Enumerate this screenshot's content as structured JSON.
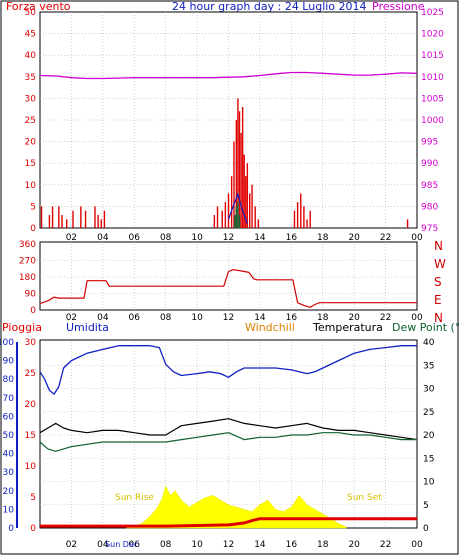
{
  "header": {
    "left_label": "Forza vento",
    "title": "24 hour graph day : 24 Luglio 2014",
    "right_label": "Pressione"
  },
  "colors": {
    "frame": "#000000",
    "wind": "#e00000",
    "pressure": "#d000d0",
    "direction": "#d00000",
    "humidity": "#1020c0",
    "temperature": "#000000",
    "dewpoint": "#106030",
    "windchill": "#e08000",
    "rain": "#e00000",
    "solar": "#ffff00",
    "solar_label": "#d8c000",
    "grid": "#b0b0b0"
  },
  "chart_data": [
    {
      "type": "line",
      "id": "wind-pressure",
      "x_ticks": [
        "02",
        "04",
        "06",
        "08",
        "10",
        "12",
        "14",
        "16",
        "18",
        "20",
        "22",
        "00"
      ],
      "y_left": {
        "label": "Forza vento",
        "ylim": [
          0,
          50
        ],
        "ticks": [
          0,
          5,
          10,
          15,
          20,
          25,
          30,
          35,
          40,
          45,
          50
        ]
      },
      "y_right": {
        "label": "Pressione",
        "ylim": [
          975,
          1025
        ],
        "ticks": [
          975,
          980,
          985,
          990,
          995,
          1000,
          1005,
          1010,
          1015,
          1020,
          1025
        ]
      },
      "series": [
        {
          "name": "Pressione",
          "color": "pressure",
          "x": [
            0,
            1,
            2,
            3,
            4,
            5,
            6,
            7,
            8,
            9,
            10,
            11,
            12,
            13,
            14,
            15,
            16,
            17,
            18,
            19,
            20,
            21,
            22,
            23,
            24
          ],
          "y": [
            1010.3,
            1010.2,
            1009.8,
            1009.6,
            1009.6,
            1009.7,
            1009.8,
            1009.8,
            1009.8,
            1009.8,
            1009.8,
            1009.8,
            1009.9,
            1010.0,
            1010.3,
            1010.7,
            1011.0,
            1011.0,
            1010.8,
            1010.6,
            1010.4,
            1010.4,
            1010.6,
            1010.9,
            1010.8
          ]
        },
        {
          "name": "Forza vento",
          "color": "wind",
          "x": [
            0.1,
            0.6,
            0.8,
            1.2,
            1.4,
            1.7,
            2.1,
            2.6,
            2.9,
            3.5,
            3.7,
            3.9,
            4.1,
            11.1,
            11.3,
            11.6,
            11.8,
            12.0,
            12.2,
            12.35,
            12.5,
            12.6,
            12.7,
            12.8,
            12.9,
            13.0,
            13.1,
            13.2,
            13.35,
            13.5,
            13.7,
            13.9,
            16.2,
            16.4,
            16.6,
            16.8,
            17.0,
            17.2,
            23.4
          ],
          "y": [
            5,
            3,
            5,
            5,
            3,
            2,
            4,
            5,
            4,
            5,
            3,
            2,
            4,
            3,
            5,
            4,
            6,
            8,
            12,
            20,
            25,
            30,
            27,
            22,
            28,
            17,
            12,
            15,
            8,
            10,
            5,
            2,
            4,
            6,
            8,
            5,
            2,
            4,
            2
          ]
        },
        {
          "name": "",
          "color": "humidity",
          "x": [
            12.0,
            12.2,
            12.4,
            12.5,
            12.6,
            12.8,
            13.0,
            13.2
          ],
          "y": [
            2,
            4,
            6,
            7,
            8,
            5,
            3,
            1
          ]
        },
        {
          "name": "",
          "color": "dewpoint",
          "x": [
            12.4,
            12.5,
            12.6,
            12.7
          ],
          "y": [
            3,
            5,
            6,
            3
          ]
        }
      ]
    },
    {
      "type": "line",
      "id": "wind-direction",
      "x_ticks": [
        "02",
        "04",
        "06",
        "08",
        "10",
        "12",
        "14",
        "16",
        "18",
        "20",
        "22",
        "00"
      ],
      "y_left": {
        "ylim": [
          0,
          360
        ],
        "ticks": [
          0,
          90,
          180,
          270,
          360
        ]
      },
      "y_right_labels": [
        "N",
        "W",
        "S",
        "E",
        "N"
      ],
      "series": [
        {
          "name": "",
          "color": "direction",
          "x": [
            0.0,
            0.5,
            0.9,
            1.2,
            2.8,
            3.0,
            4.2,
            4.4,
            11.4,
            11.7,
            12.0,
            12.3,
            12.7,
            13.0,
            13.3,
            13.6,
            13.8,
            14.1,
            16.1,
            16.4,
            16.8,
            17.2,
            17.5,
            17.8,
            24.0
          ],
          "y": [
            35,
            50,
            70,
            65,
            65,
            160,
            160,
            130,
            130,
            130,
            210,
            220,
            215,
            210,
            205,
            170,
            165,
            165,
            165,
            40,
            25,
            15,
            30,
            40,
            40
          ]
        }
      ]
    },
    {
      "type": "line",
      "id": "weather",
      "legend": [
        "Pioggia",
        "Umidita",
        "Windchill",
        "Temperatura",
        "Dew Point (°C"
      ],
      "x_ticks": [
        "02",
        "04",
        "06",
        "08",
        "10",
        "12",
        "14",
        "16",
        "18",
        "20",
        "22",
        "00"
      ],
      "y_humidity": {
        "ylim": [
          0,
          100
        ],
        "ticks": [
          0,
          10,
          20,
          30,
          40,
          50,
          60,
          70,
          80,
          90,
          100
        ]
      },
      "y_rain": {
        "ylim": [
          0,
          30
        ],
        "ticks": [
          0,
          5,
          10,
          15,
          20,
          25,
          30
        ]
      },
      "y_temp": {
        "ylim": [
          0,
          40
        ],
        "ticks": [
          0,
          5,
          10,
          15,
          20,
          25,
          30,
          35,
          40
        ]
      },
      "annotations": [
        "Sun Rise",
        "Sun Set",
        "Sun Dec"
      ],
      "series": [
        {
          "name": "Umidita",
          "color": "humidity",
          "x": [
            0.0,
            0.3,
            0.6,
            0.9,
            1.2,
            1.5,
            2.0,
            2.5,
            3.0,
            4.0,
            5.0,
            6.0,
            7.0,
            7.6,
            8.0,
            8.5,
            9.0,
            10.0,
            10.8,
            11.5,
            12.0,
            12.5,
            13.0,
            14.0,
            15.0,
            16.0,
            17.0,
            17.5,
            18.0,
            19.0,
            20.0,
            21.0,
            22.0,
            23.0,
            24.0
          ],
          "y": [
            84,
            80,
            74,
            72,
            76,
            86,
            90,
            92,
            94,
            96,
            98,
            98,
            98,
            97,
            88,
            84,
            82,
            83,
            84,
            83,
            81,
            84,
            86,
            86,
            86,
            85,
            83,
            84,
            86,
            90,
            94,
            96,
            97,
            98,
            98
          ]
        },
        {
          "name": "Temperatura",
          "color": "temperature",
          "x": [
            0.0,
            0.5,
            1.0,
            1.5,
            2.0,
            3.0,
            4.0,
            5.0,
            6.0,
            7.0,
            8.0,
            8.5,
            9.0,
            10.0,
            11.0,
            12.0,
            13.0,
            14.0,
            15.0,
            16.0,
            17.0,
            18.0,
            19.0,
            20.0,
            21.0,
            22.0,
            23.0,
            24.0
          ],
          "y": [
            20.5,
            21.5,
            22.5,
            21.5,
            21.0,
            20.5,
            21.0,
            21.0,
            20.5,
            20.0,
            20.0,
            21.0,
            22.0,
            22.5,
            23.0,
            23.5,
            22.5,
            22.0,
            21.5,
            22.0,
            22.5,
            21.5,
            21.0,
            21.0,
            20.5,
            20.0,
            19.5,
            19.0
          ]
        },
        {
          "name": "Dew Point (°C",
          "color": "dewpoint",
          "x": [
            0.0,
            0.5,
            1.0,
            2.0,
            3.0,
            4.0,
            5.0,
            6.0,
            7.0,
            8.0,
            9.0,
            10.0,
            11.0,
            12.0,
            13.0,
            14.0,
            15.0,
            16.0,
            17.0,
            18.0,
            19.0,
            20.0,
            21.0,
            22.0,
            23.0,
            24.0
          ],
          "y": [
            18.5,
            17.0,
            16.5,
            17.5,
            18.0,
            18.5,
            18.5,
            18.5,
            18.5,
            18.5,
            19.0,
            19.5,
            20.0,
            20.5,
            19.0,
            19.5,
            19.5,
            20.0,
            20.0,
            20.5,
            20.5,
            20.0,
            20.0,
            19.5,
            19.0,
            19.0
          ]
        },
        {
          "name": "Pioggia",
          "color": "rain",
          "x": [
            0.0,
            5.0,
            8.0,
            10.0,
            12.0,
            13.0,
            13.5,
            14.0,
            16.0,
            18.0,
            20.0,
            22.0,
            24.0
          ],
          "y": [
            0.3,
            0.3,
            0.3,
            0.4,
            0.5,
            0.8,
            1.2,
            1.5,
            1.5,
            1.5,
            1.5,
            1.5,
            1.5
          ]
        },
        {
          "name": "",
          "color": "solar",
          "x": [
            5.5,
            6.0,
            6.5,
            7.0,
            7.5,
            7.8,
            8.0,
            8.3,
            8.6,
            9.0,
            9.5,
            10.0,
            10.5,
            11.0,
            11.5,
            12.0,
            12.5,
            13.0,
            13.5,
            14.0,
            14.5,
            15.0,
            15.5,
            16.0,
            16.5,
            17.0,
            17.5,
            18.0,
            18.5,
            19.0,
            19.5
          ],
          "y": [
            0.0,
            0.3,
            1.0,
            2.5,
            4.5,
            6.5,
            9.0,
            7.0,
            8.0,
            6.0,
            4.5,
            5.5,
            6.5,
            7.0,
            6.0,
            5.0,
            4.5,
            4.0,
            3.5,
            5.0,
            6.0,
            4.0,
            3.5,
            4.5,
            7.0,
            5.0,
            4.0,
            3.0,
            2.0,
            1.0,
            0.2
          ]
        }
      ]
    }
  ]
}
